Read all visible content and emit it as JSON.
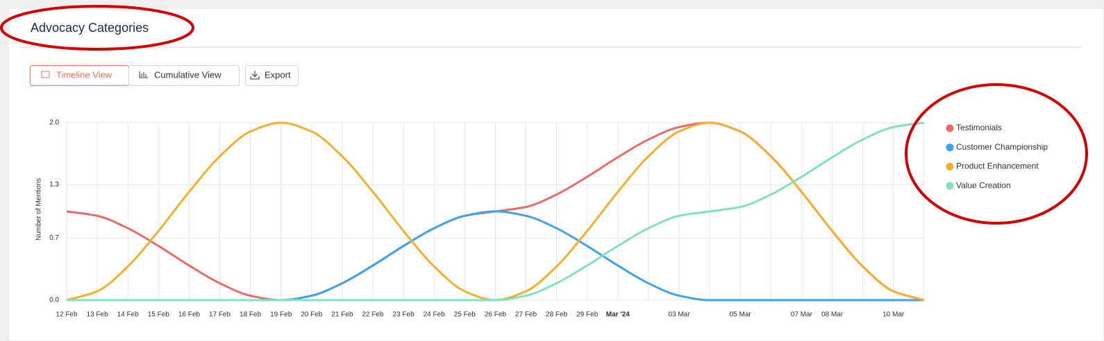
{
  "header": {
    "title": "Advocacy Categories"
  },
  "buttons": [
    "Timeline View",
    "Cumulative View",
    "Export"
  ],
  "chart_data": {
    "type": "line",
    "y_label": "Number of Mentions",
    "categories": [
      "12 Feb",
      "13 Feb",
      "14 Feb",
      "15 Feb",
      "16 Feb",
      "17 Feb",
      "18 Feb",
      "19 Feb",
      "20 Feb",
      "21 Feb",
      "22 Feb",
      "23 Feb",
      "24 Feb",
      "25 Feb",
      "26 Feb",
      "27 Feb",
      "28 Feb",
      "29 Feb",
      "Mar '24",
      null,
      "03 Mar",
      null,
      "05 Mar",
      null,
      "07 Mar",
      "08 Mar",
      null,
      "10 Mar",
      null
    ],
    "ylim": [
      0,
      2
    ],
    "yticks": [
      {
        "value": 0,
        "label": "0.0"
      },
      0.7,
      1.3,
      {
        "value": 2,
        "label": "2.0"
      }
    ],
    "grid": true,
    "series": [
      {
        "name": "Testimonials",
        "color": "#ea6a68",
        "values": [
          1,
          0.95,
          0.81,
          0.61,
          0.39,
          0.19,
          0.05,
          0,
          0.05,
          0.19,
          0.39,
          0.61,
          0.81,
          0.95,
          1,
          1.05,
          1.19,
          1.39,
          1.61,
          1.81,
          1.95,
          2,
          1.9,
          1.62,
          1.22,
          0.78,
          0.38,
          0.1,
          0
        ]
      },
      {
        "name": "Customer Championship",
        "color": "#3fa2ee",
        "values": [
          0,
          0,
          0,
          0,
          0,
          0,
          0,
          0,
          0.05,
          0.19,
          0.39,
          0.61,
          0.81,
          0.95,
          1,
          0.95,
          0.81,
          0.61,
          0.39,
          0.19,
          0.05,
          0,
          0,
          0,
          0,
          0,
          0,
          0,
          0
        ]
      },
      {
        "name": "Product Enhancement",
        "color": "#f5ae2d",
        "values": [
          0,
          0.1,
          0.38,
          0.78,
          1.22,
          1.62,
          1.9,
          2,
          1.9,
          1.62,
          1.22,
          0.78,
          0.38,
          0.1,
          0,
          0.1,
          0.38,
          0.78,
          1.22,
          1.62,
          1.9,
          2,
          1.9,
          1.62,
          1.22,
          0.78,
          0.38,
          0.1,
          0
        ]
      },
      {
        "name": "Value Creation",
        "color": "#7fe0c2",
        "values": [
          0,
          0,
          0,
          0,
          0,
          0,
          0,
          0,
          0,
          0,
          0,
          0,
          0,
          0,
          0,
          0.05,
          0.19,
          0.39,
          0.61,
          0.81,
          0.95,
          1,
          1.05,
          1.19,
          1.39,
          1.61,
          1.81,
          1.95,
          2
        ]
      }
    ]
  }
}
